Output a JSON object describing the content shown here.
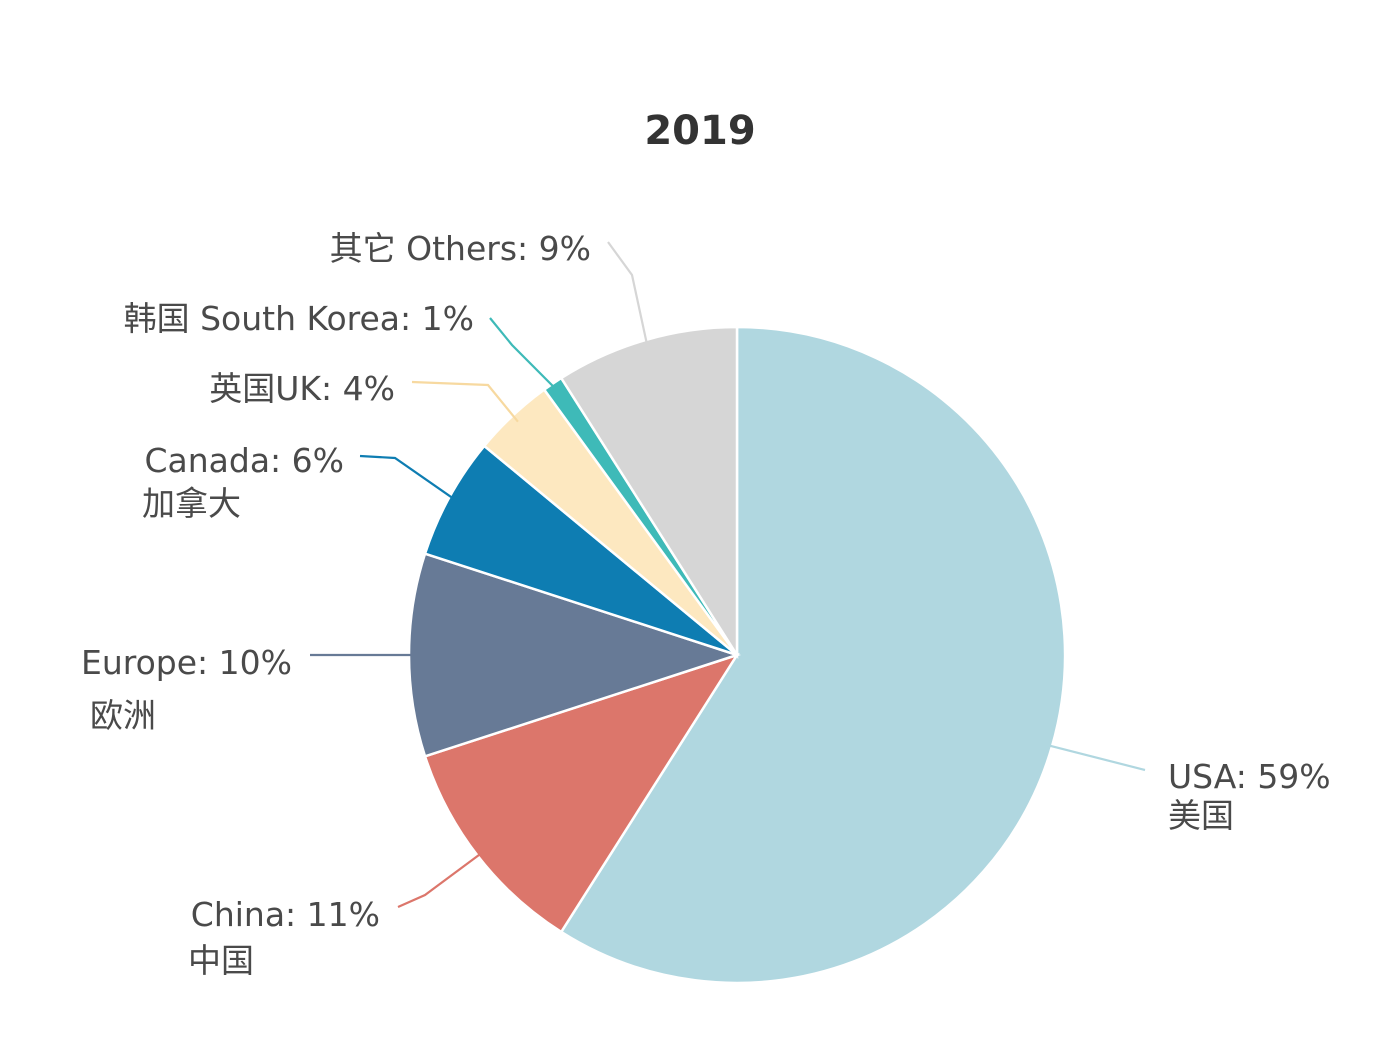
{
  "chart_data": {
    "type": "pie",
    "title": "2019",
    "slices": [
      {
        "key": "usa",
        "line1": "USA: 59%",
        "line2": "美国",
        "value": 59,
        "color": "#b0d7e0"
      },
      {
        "key": "china",
        "line1": "China: 11%",
        "line2": "中国",
        "value": 11,
        "color": "#dc766b"
      },
      {
        "key": "europe",
        "line1": "Europe: 10%",
        "line2": "欧洲",
        "value": 10,
        "color": "#677a96"
      },
      {
        "key": "canada",
        "line1": "Canada: 6%",
        "line2": "加拿大",
        "value": 6,
        "color": "#0e7db2"
      },
      {
        "key": "uk",
        "line1": "英国UK: 4%",
        "line2": "",
        "value": 4,
        "color": "#fde8c0"
      },
      {
        "key": "south-korea",
        "line1": "韩国 South Korea: 1%",
        "line2": "",
        "value": 1,
        "color": "#3ebab8"
      },
      {
        "key": "others",
        "line1": "其它 Others: 9%",
        "line2": "",
        "value": 9,
        "color": "#d6d6d6"
      }
    ],
    "start_angle": "12 o'clock",
    "direction": "clockwise",
    "label_color": "#4a4a4a",
    "border_color": "#ffffff"
  }
}
